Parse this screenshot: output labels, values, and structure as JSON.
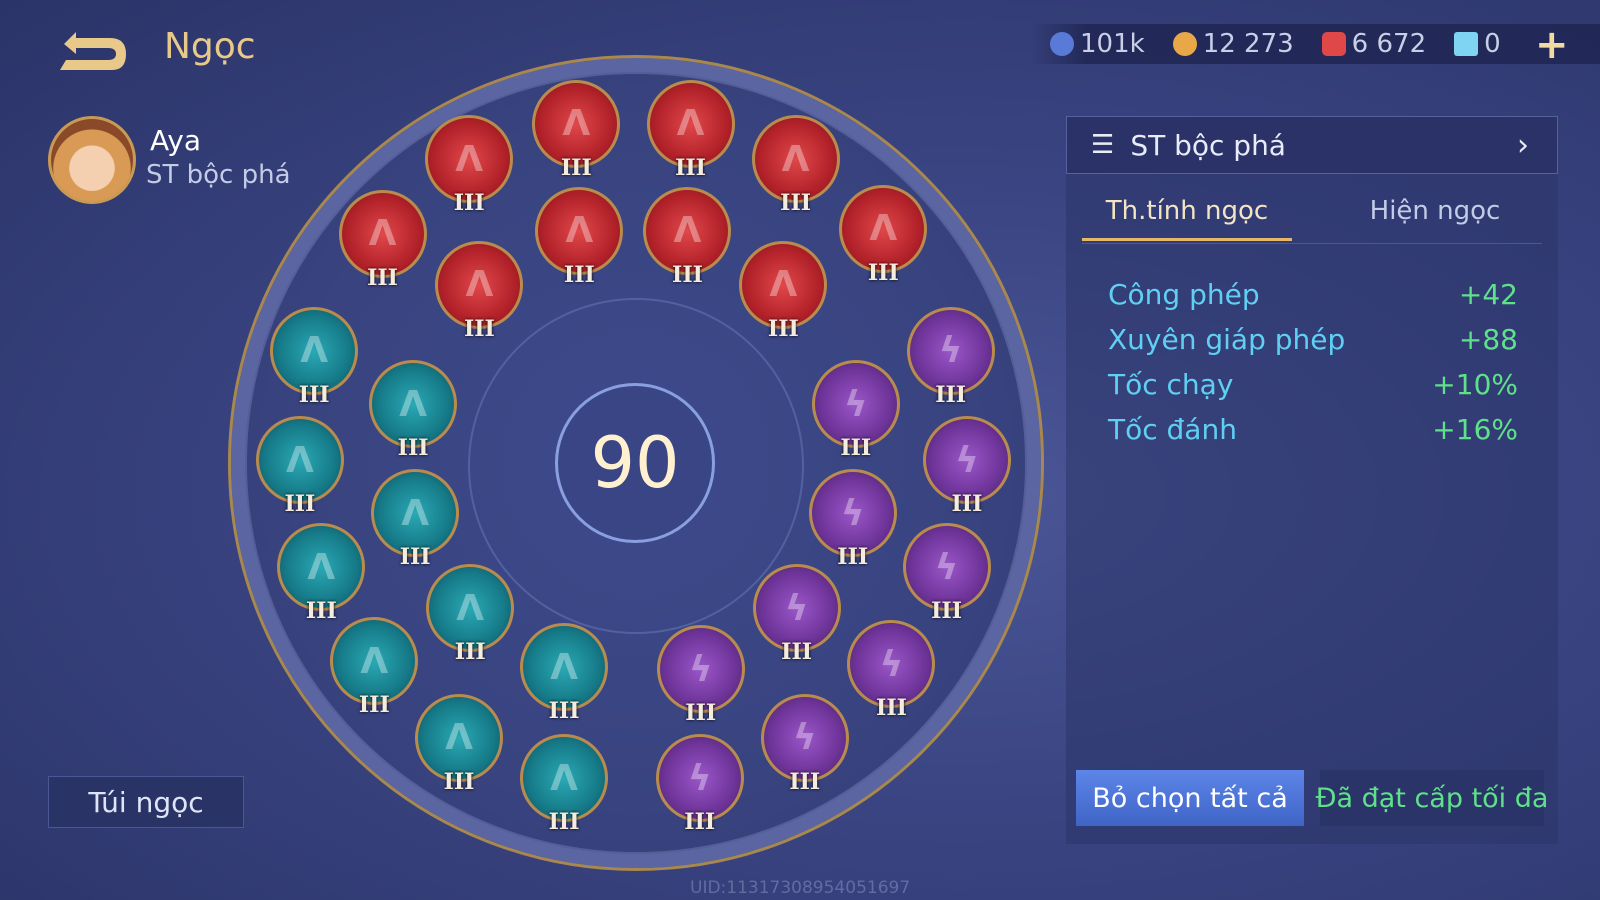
{
  "header": {
    "title": "Ngọc",
    "back_icon": "back-arrow-icon"
  },
  "hero": {
    "name": "Aya",
    "preset": "ST bộc phá"
  },
  "currency": [
    {
      "icon": "blue-token-icon",
      "value": "101k",
      "color": "#5a7ad8"
    },
    {
      "icon": "gold-coin-icon",
      "value": "12 273",
      "color": "#e8a848"
    },
    {
      "icon": "red-gem-icon",
      "value": "6 672",
      "color": "#e04848"
    },
    {
      "icon": "blue-ticket-icon",
      "value": "0",
      "color": "#7fd4f4"
    }
  ],
  "add_label": "+",
  "board": {
    "level": "90",
    "gems": [
      {
        "type": "red",
        "level": "III"
      },
      {
        "type": "red",
        "level": "III"
      },
      {
        "type": "red",
        "level": "III"
      },
      {
        "type": "red",
        "level": "III"
      },
      {
        "type": "red",
        "level": "III"
      },
      {
        "type": "red",
        "level": "III"
      },
      {
        "type": "red",
        "level": "III"
      },
      {
        "type": "red",
        "level": "III"
      },
      {
        "type": "red",
        "level": "III"
      },
      {
        "type": "red",
        "level": "III"
      },
      {
        "type": "teal",
        "level": "III"
      },
      {
        "type": "teal",
        "level": "III"
      },
      {
        "type": "teal",
        "level": "III"
      },
      {
        "type": "teal",
        "level": "III"
      },
      {
        "type": "teal",
        "level": "III"
      },
      {
        "type": "teal",
        "level": "III"
      },
      {
        "type": "teal",
        "level": "III"
      },
      {
        "type": "teal",
        "level": "III"
      },
      {
        "type": "teal",
        "level": "III"
      },
      {
        "type": "teal",
        "level": "III"
      },
      {
        "type": "purple",
        "level": "III"
      },
      {
        "type": "purple",
        "level": "III"
      },
      {
        "type": "purple",
        "level": "III"
      },
      {
        "type": "purple",
        "level": "III"
      },
      {
        "type": "purple",
        "level": "III"
      },
      {
        "type": "purple",
        "level": "III"
      },
      {
        "type": "purple",
        "level": "III"
      },
      {
        "type": "purple",
        "level": "III"
      },
      {
        "type": "purple",
        "level": "III"
      },
      {
        "type": "purple",
        "level": "III"
      }
    ]
  },
  "bag_label": "Túi ngọc",
  "panel": {
    "preset_label": "ST bộc phá",
    "tabs": [
      {
        "label": "Th.tính ngọc",
        "active": true
      },
      {
        "label": "Hiện ngọc",
        "active": false
      }
    ],
    "stats": [
      {
        "name": "Công phép",
        "value": "+42"
      },
      {
        "name": "Xuyên giáp phép",
        "value": "+88"
      },
      {
        "name": "Tốc chạy",
        "value": "+10%"
      },
      {
        "name": "Tốc đánh",
        "value": "+16%"
      }
    ],
    "deselect_label": "Bỏ chọn tất cả",
    "max_label": "Đã đạt cấp tối đa"
  },
  "uid": "UID:113173089540516​97"
}
